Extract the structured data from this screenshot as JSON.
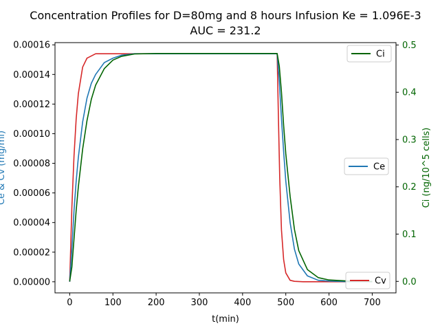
{
  "chart_data": {
    "type": "line",
    "title_line1": "Concentration Profiles for D=80mg and 8 hours Infusion Ke = 1.096E-3",
    "title_line2": "AUC = 231.2",
    "xlabel": "t(min)",
    "ylabel_left": "Ce & Cv (mg/ml)",
    "ylabel_right": "Ci (ng/10^5 cells)",
    "xlim": [
      -34,
      755
    ],
    "ylim_left": [
      -7.5e-06,
      0.0001615
    ],
    "ylim_right": [
      -0.0243,
      0.505
    ],
    "xticks": [
      0,
      100,
      200,
      300,
      400,
      500,
      600,
      700
    ],
    "xtick_labels": [
      "0",
      "100",
      "200",
      "300",
      "400",
      "500",
      "600",
      "700"
    ],
    "yticks_left": [
      0,
      2e-05,
      4e-05,
      6e-05,
      8e-05,
      0.0001,
      0.00012,
      0.00014,
      0.00016
    ],
    "ytick_labels_left": [
      "0.00000",
      "0.00002",
      "0.00004",
      "0.00006",
      "0.00008",
      "0.00010",
      "0.00012",
      "0.00014",
      "0.00016"
    ],
    "yticks_right": [
      0,
      0.1,
      0.2,
      0.3,
      0.4,
      0.5
    ],
    "ytick_labels_right": [
      "0.0",
      "0.1",
      "0.2",
      "0.3",
      "0.4",
      "0.5"
    ],
    "colors": {
      "Ce": "#1f77b4",
      "Cv": "#d62728",
      "Ci": "#006400",
      "ylabel_left": "#1f77b4",
      "ylabel_right": "#006400"
    },
    "legend_entries": [
      {
        "name": "Ci",
        "placement": "top-right"
      },
      {
        "name": "Ce",
        "placement": "center-right"
      },
      {
        "name": "Cv",
        "placement": "bottom-right"
      }
    ],
    "series": [
      {
        "name": "Cv",
        "axis": "left",
        "x": [
          0,
          5,
          10,
          15,
          20,
          30,
          40,
          60,
          100,
          200,
          300,
          400,
          475,
          478,
          480,
          483,
          486,
          490,
          495,
          500,
          510,
          520,
          540,
          600,
          700
        ],
        "y": [
          0,
          5e-05,
          8.5e-05,
          0.00011,
          0.000127,
          0.000145,
          0.000151,
          0.000154,
          0.000154,
          0.000154,
          0.000154,
          0.000154,
          0.000154,
          0.000154,
          0.000154,
          0.00011,
          7e-05,
          3.5e-05,
          1.5e-05,
          6e-06,
          1e-06,
          3e-07,
          0,
          0,
          0
        ]
      },
      {
        "name": "Ce",
        "axis": "left",
        "x": [
          0,
          5,
          10,
          15,
          20,
          30,
          40,
          50,
          60,
          80,
          100,
          120,
          150,
          200,
          300,
          400,
          475,
          480,
          485,
          490,
          495,
          500,
          510,
          520,
          530,
          550,
          575,
          600,
          650,
          700
        ],
        "y": [
          0,
          2.2e-05,
          4.8e-05,
          6.8e-05,
          8.4e-05,
          0.000108,
          0.000124,
          0.000134,
          0.00014,
          0.000148,
          0.000151,
          0.000153,
          0.000154,
          0.000154,
          0.000154,
          0.000154,
          0.000154,
          0.000154,
          0.000135,
          0.00011,
          8.8e-05,
          6.8e-05,
          4e-05,
          2.2e-05,
          1.2e-05,
          4e-06,
          1e-06,
          5e-07,
          0,
          0
        ]
      },
      {
        "name": "Ci",
        "axis": "right",
        "x": [
          0,
          5,
          10,
          15,
          20,
          30,
          40,
          50,
          60,
          80,
          100,
          120,
          150,
          200,
          300,
          400,
          480,
          485,
          490,
          495,
          500,
          510,
          520,
          530,
          550,
          575,
          600,
          650,
          700
        ],
        "y": [
          0,
          0.03,
          0.09,
          0.15,
          0.2,
          0.28,
          0.34,
          0.385,
          0.415,
          0.45,
          0.468,
          0.476,
          0.481,
          0.482,
          0.482,
          0.482,
          0.482,
          0.455,
          0.4,
          0.33,
          0.27,
          0.18,
          0.11,
          0.065,
          0.025,
          0.008,
          0.003,
          0.0005,
          0
        ]
      }
    ]
  }
}
